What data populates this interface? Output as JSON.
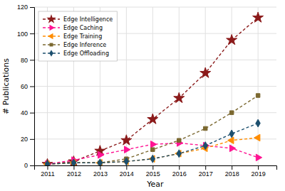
{
  "chart_data": {
    "type": "line",
    "xlabel": "Year",
    "ylabel": "# Publications",
    "x": [
      2011,
      2012,
      2013,
      2014,
      2015,
      2016,
      2017,
      2018,
      2019
    ],
    "xlim": [
      2010.5,
      2019.7
    ],
    "xticks": [
      2011,
      2012,
      2013,
      2014,
      2015,
      2016,
      2017,
      2018,
      2019
    ],
    "ylim": [
      0,
      120
    ],
    "yticks": [
      0,
      20,
      40,
      60,
      80,
      100,
      120
    ],
    "grid": true,
    "legend": "upper left",
    "line_style": "dashed",
    "series": [
      {
        "name": "Edge Intelligence",
        "color": "#8B1A1A",
        "marker": "star",
        "values": [
          1,
          3,
          11,
          19,
          35,
          51,
          70,
          95,
          112
        ]
      },
      {
        "name": "Edge Caching",
        "color": "#FF1493",
        "marker": "triangle-right",
        "values": [
          1,
          4,
          8,
          12,
          16,
          17,
          15,
          13,
          6
        ]
      },
      {
        "name": "Edge Training",
        "color": "#FF8C00",
        "marker": "triangle-left",
        "values": [
          1,
          2,
          2,
          3,
          5,
          9,
          13,
          19,
          21
        ]
      },
      {
        "name": "Edge Inference",
        "color": "#7B6830",
        "marker": "square",
        "values": [
          1,
          2,
          2,
          5,
          12,
          19,
          28,
          40,
          53
        ]
      },
      {
        "name": "Edge Offloading",
        "color": "#1C4F6E",
        "marker": "diamond",
        "values": [
          1,
          2,
          2,
          3,
          5,
          9,
          15,
          24,
          32
        ]
      }
    ]
  }
}
